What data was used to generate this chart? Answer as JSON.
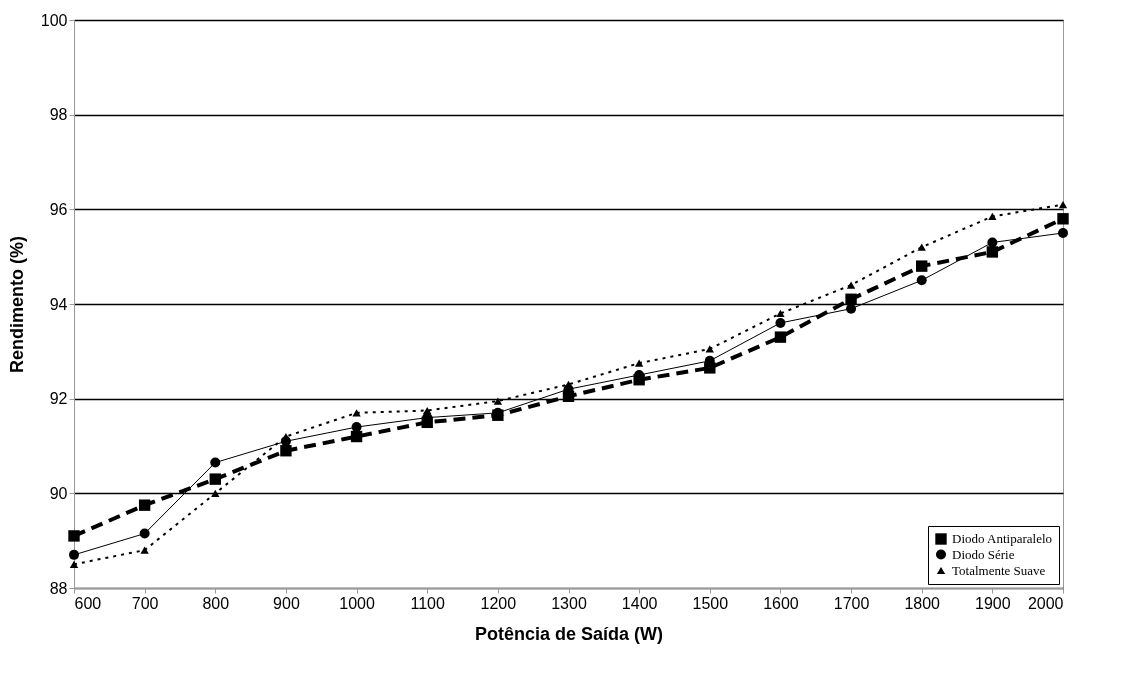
{
  "chart_data": {
    "type": "line",
    "xlabel": "Potência de Saída (W)",
    "ylabel": "Rendimento (%)",
    "x": [
      600,
      700,
      800,
      900,
      1000,
      1100,
      1200,
      1300,
      1400,
      1500,
      1600,
      1700,
      1800,
      1900,
      2000
    ],
    "series": [
      {
        "name": "Diodo Antiparalelo",
        "color": "#000000",
        "marker": "square",
        "line_style": "dashed",
        "values": [
          89.1,
          89.75,
          90.3,
          90.9,
          91.2,
          91.5,
          91.65,
          92.05,
          92.4,
          92.65,
          93.3,
          94.1,
          94.8,
          95.1,
          95.8
        ]
      },
      {
        "name": "Diodo Série",
        "color": "#000000",
        "marker": "circle",
        "line_style": "solid",
        "values": [
          88.7,
          89.15,
          90.65,
          91.1,
          91.4,
          91.6,
          91.7,
          92.2,
          92.5,
          92.8,
          93.6,
          93.9,
          94.5,
          95.3,
          95.5
        ]
      },
      {
        "name": "Totalmente Suave",
        "color": "#000000",
        "marker": "triangle",
        "line_style": "dotted",
        "values": [
          88.5,
          88.8,
          90.0,
          91.2,
          91.7,
          91.75,
          91.95,
          92.3,
          92.75,
          93.05,
          93.8,
          94.4,
          95.2,
          95.85,
          96.1
        ]
      }
    ],
    "xlim": [
      600,
      2000
    ],
    "xticks": [
      600,
      700,
      800,
      900,
      1000,
      1100,
      1200,
      1300,
      1400,
      1500,
      1600,
      1700,
      1800,
      1900,
      2000
    ],
    "ylim": [
      88,
      100
    ],
    "yticks": [
      88,
      90,
      92,
      94,
      96,
      98,
      100
    ],
    "grid": "y",
    "legend": "bottom right"
  }
}
